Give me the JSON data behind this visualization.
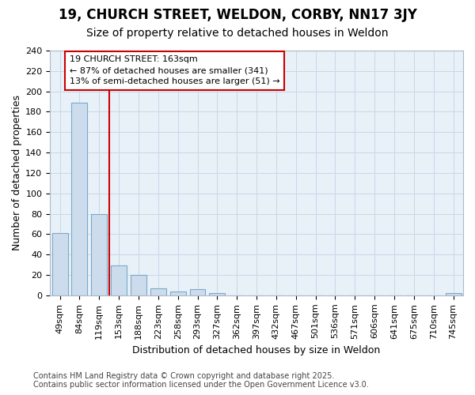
{
  "title_line1": "19, CHURCH STREET, WELDON, CORBY, NN17 3JY",
  "title_line2": "Size of property relative to detached houses in Weldon",
  "xlabel": "Distribution of detached houses by size in Weldon",
  "ylabel": "Number of detached properties",
  "footnote1": "Contains HM Land Registry data © Crown copyright and database right 2025.",
  "footnote2": "Contains public sector information licensed under the Open Government Licence v3.0.",
  "categories": [
    "49sqm",
    "84sqm",
    "119sqm",
    "153sqm",
    "188sqm",
    "223sqm",
    "258sqm",
    "293sqm",
    "327sqm",
    "362sqm",
    "397sqm",
    "432sqm",
    "467sqm",
    "501sqm",
    "536sqm",
    "571sqm",
    "606sqm",
    "641sqm",
    "675sqm",
    "710sqm",
    "745sqm"
  ],
  "values": [
    61,
    189,
    80,
    29,
    20,
    7,
    4,
    6,
    2,
    0,
    0,
    0,
    0,
    0,
    0,
    0,
    0,
    0,
    0,
    0,
    2
  ],
  "bar_color": "#ccdcec",
  "bar_edge_color": "#7aaac8",
  "grid_color": "#c8d8e8",
  "vline_color": "#cc0000",
  "vline_pos": 2.5,
  "annotation_text": "19 CHURCH STREET: 163sqm\n← 87% of detached houses are smaller (341)\n13% of semi-detached houses are larger (51) →",
  "annotation_box_edge_color": "#cc0000",
  "annotation_bg_color": "#ffffff",
  "ylim": [
    0,
    240
  ],
  "yticks": [
    0,
    20,
    40,
    60,
    80,
    100,
    120,
    140,
    160,
    180,
    200,
    220,
    240
  ],
  "fig_bg_color": "#ffffff",
  "plot_bg_color": "#e8f0f8",
  "title_fontsize": 12,
  "subtitle_fontsize": 10,
  "axis_label_fontsize": 9,
  "tick_fontsize": 8,
  "footnote_fontsize": 7,
  "annotation_fontsize": 8
}
